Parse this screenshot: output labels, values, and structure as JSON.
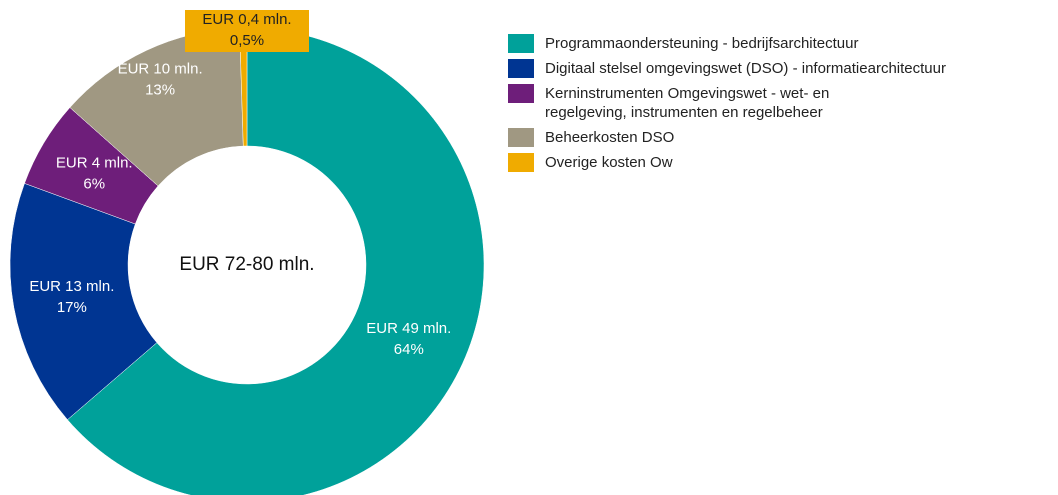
{
  "chart_data": {
    "type": "donut",
    "center_label": "EUR 72-80 mln.",
    "categories": [
      "Programmaondersteuning - bedrijfsarchitectuur",
      "Digitaal stelsel omgevingswet (DSO) - informatiearchitectuur",
      "Kerninstrumenten Omgevingswet - wet- en regelgeving, instrumenten en regelbeheer",
      "Beheerkosten DSO",
      "Overige kosten Ow"
    ],
    "values": [
      64,
      17,
      6,
      13,
      0.5
    ],
    "value_labels": [
      "64%",
      "17%",
      "6%",
      "13%",
      "0,5%"
    ],
    "amount_labels": [
      "EUR 49 mln.",
      "EUR 13 mln.",
      "EUR 4 mln.",
      "EUR 10 mln.",
      "EUR 0,4 mln."
    ],
    "colors": [
      "#00a19a",
      "#003592",
      "#6e1e7a",
      "#a09882",
      "#f0ab00"
    ],
    "legend": "right"
  }
}
